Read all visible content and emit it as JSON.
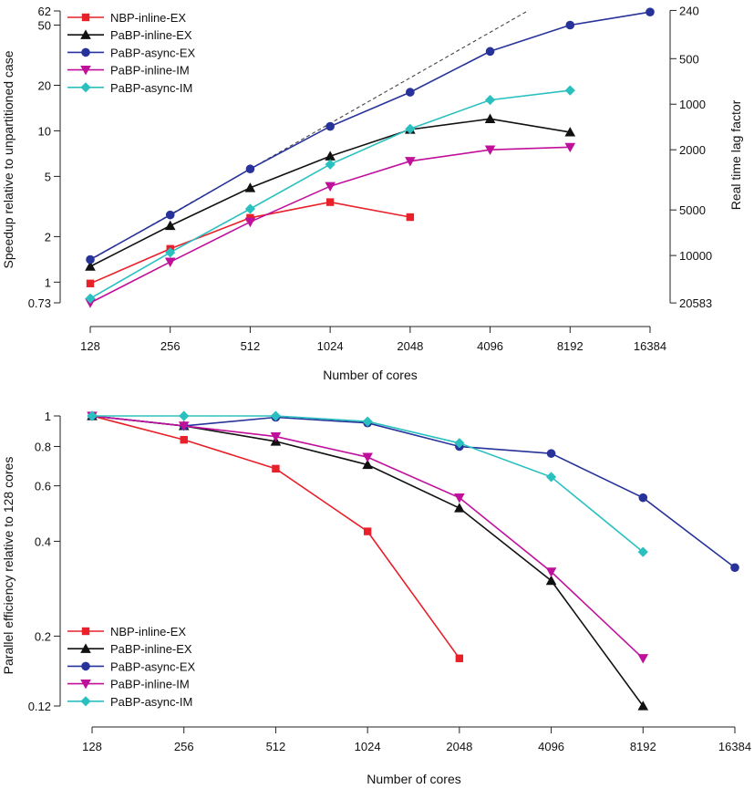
{
  "chart_data": [
    {
      "type": "line",
      "scale": "log-log",
      "x": [
        128,
        256,
        512,
        1024,
        2048,
        4096,
        8192,
        16384
      ],
      "x_tick_labels": [
        "128",
        "256",
        "512",
        "1024",
        "2048",
        "4096",
        "8192",
        "16384"
      ],
      "xlabel": "Number of cores",
      "ylabel": "Speedup relative to unpartitioned case",
      "ylabel_right": "Real time lag factor",
      "ylim": [
        0.73,
        62
      ],
      "y_ticks": [
        0.73,
        1,
        2,
        5,
        10,
        20,
        50,
        62
      ],
      "y_tick_labels": [
        "0.73",
        "1",
        "2",
        "5",
        "10",
        "20",
        "50",
        "62"
      ],
      "right_ticks": [
        240,
        500,
        1000,
        2000,
        5000,
        10000,
        20583
      ],
      "right_tick_labels": [
        "240",
        "500",
        "1000",
        "2000",
        "5000",
        "10000",
        "20583"
      ],
      "right_axis_constant": 15000,
      "ideal_line": {
        "style": "dashed",
        "x": [
          128,
          16384
        ],
        "y": [
          1.4,
          179.2
        ]
      },
      "legend_position": "top-left",
      "series": [
        {
          "name": "NBP-inline-EX",
          "color": "#e8202a",
          "marker": "square",
          "values": [
            0.98,
            1.66,
            2.66,
            3.38,
            2.69,
            null,
            null,
            null
          ]
        },
        {
          "name": "PaBP-inline-EX",
          "color": "#111111",
          "marker": "triangle-up",
          "values": [
            1.27,
            2.36,
            4.2,
            6.8,
            10.2,
            12,
            9.8,
            null
          ]
        },
        {
          "name": "PaBP-async-EX",
          "color": "#27339a",
          "marker": "circle",
          "values": [
            1.41,
            2.78,
            5.6,
            10.7,
            18,
            33.5,
            50,
            61
          ]
        },
        {
          "name": "PaBP-inline-IM",
          "color": "#c0109b",
          "marker": "triangle-down",
          "values": [
            0.73,
            1.36,
            2.5,
            4.3,
            6.3,
            7.5,
            7.8,
            null
          ]
        },
        {
          "name": "PaBP-async-IM",
          "color": "#2bc0c0",
          "marker": "diamond",
          "values": [
            0.78,
            1.57,
            3.05,
            6.0,
            10.3,
            16,
            18.5,
            null
          ]
        }
      ]
    },
    {
      "type": "line",
      "scale": "log-log",
      "x": [
        128,
        256,
        512,
        1024,
        2048,
        4096,
        8192,
        16384
      ],
      "x_tick_labels": [
        "128",
        "256",
        "512",
        "1024",
        "2048",
        "4096",
        "8192",
        "16384"
      ],
      "xlabel": "Number of cores",
      "ylabel": "Parallel efficiency relative to 128 cores",
      "ylim": [
        0.12,
        1
      ],
      "y_ticks": [
        0.12,
        0.2,
        0.4,
        0.6,
        0.8,
        1
      ],
      "y_tick_labels": [
        "0.12",
        "0.2",
        "0.4",
        "0.6",
        "0.8",
        "1"
      ],
      "legend_position": "bottom-left",
      "series": [
        {
          "name": "NBP-inline-EX",
          "color": "#e8202a",
          "marker": "square",
          "values": [
            1.0,
            0.84,
            0.68,
            0.43,
            0.17,
            null,
            null,
            null
          ]
        },
        {
          "name": "PaBP-inline-EX",
          "color": "#111111",
          "marker": "triangle-up",
          "values": [
            1.0,
            0.93,
            0.83,
            0.7,
            0.51,
            0.3,
            0.12,
            null
          ]
        },
        {
          "name": "PaBP-async-EX",
          "color": "#27339a",
          "marker": "circle",
          "values": [
            1.0,
            0.93,
            0.99,
            0.95,
            0.8,
            0.76,
            0.55,
            0.33
          ]
        },
        {
          "name": "PaBP-inline-IM",
          "color": "#c0109b",
          "marker": "triangle-down",
          "values": [
            1.0,
            0.93,
            0.86,
            0.74,
            0.55,
            0.32,
            0.17,
            null
          ]
        },
        {
          "name": "PaBP-async-IM",
          "color": "#2bc0c0",
          "marker": "diamond",
          "values": [
            1.0,
            1.0,
            1.0,
            0.96,
            0.82,
            0.64,
            0.37,
            null
          ]
        }
      ]
    }
  ]
}
